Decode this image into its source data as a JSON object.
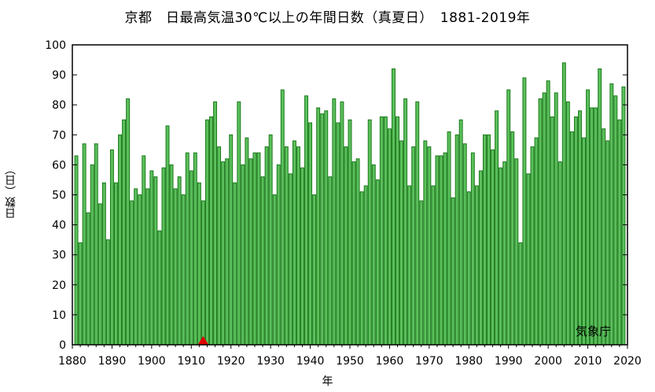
{
  "chart_data": {
    "type": "bar",
    "title": "京都　日最高気温30℃以上の年間日数（真夏日）　1881-2019年",
    "xlabel": "年",
    "ylabel": "日数（日）",
    "credit": "気象庁",
    "xlim": [
      1880,
      2020
    ],
    "ylim": [
      0,
      100
    ],
    "x_ticks": [
      1880,
      1890,
      1900,
      1910,
      1920,
      1930,
      1940,
      1950,
      1960,
      1970,
      1980,
      1990,
      2000,
      2010,
      2020
    ],
    "y_ticks": [
      0,
      10,
      20,
      30,
      40,
      50,
      60,
      70,
      80,
      90,
      100
    ],
    "grid": false,
    "marker_year": 1913,
    "colors": {
      "bar_fill": "#5cc05c",
      "bar_edge": "#1b7a1b",
      "marker": "#e00000"
    },
    "start_year": 1881,
    "values": [
      63,
      34,
      67,
      44,
      60,
      67,
      47,
      54,
      35,
      65,
      54,
      70,
      75,
      82,
      48,
      52,
      50,
      63,
      52,
      58,
      56,
      38,
      59,
      73,
      60,
      52,
      56,
      50,
      64,
      58,
      64,
      54,
      48,
      75,
      76,
      81,
      66,
      61,
      62,
      70,
      54,
      81,
      60,
      69,
      62,
      64,
      64,
      56,
      66,
      70,
      50,
      60,
      85,
      66,
      57,
      68,
      66,
      59,
      83,
      74,
      50,
      79,
      77,
      78,
      56,
      82,
      74,
      81,
      66,
      75,
      61,
      62,
      51,
      53,
      75,
      60,
      55,
      76,
      76,
      72,
      92,
      76,
      68,
      82,
      53,
      66,
      81,
      48,
      68,
      66,
      53,
      63,
      63,
      64,
      71,
      49,
      70,
      75,
      67,
      51,
      64,
      53,
      58,
      70,
      70,
      65,
      78,
      59,
      61,
      85,
      71,
      62,
      34,
      89,
      57,
      66,
      69,
      82,
      84,
      88,
      76,
      84,
      61,
      94,
      81,
      71,
      76,
      78,
      69,
      85,
      79,
      79,
      92,
      72,
      68,
      87,
      83,
      75,
      86
    ]
  }
}
